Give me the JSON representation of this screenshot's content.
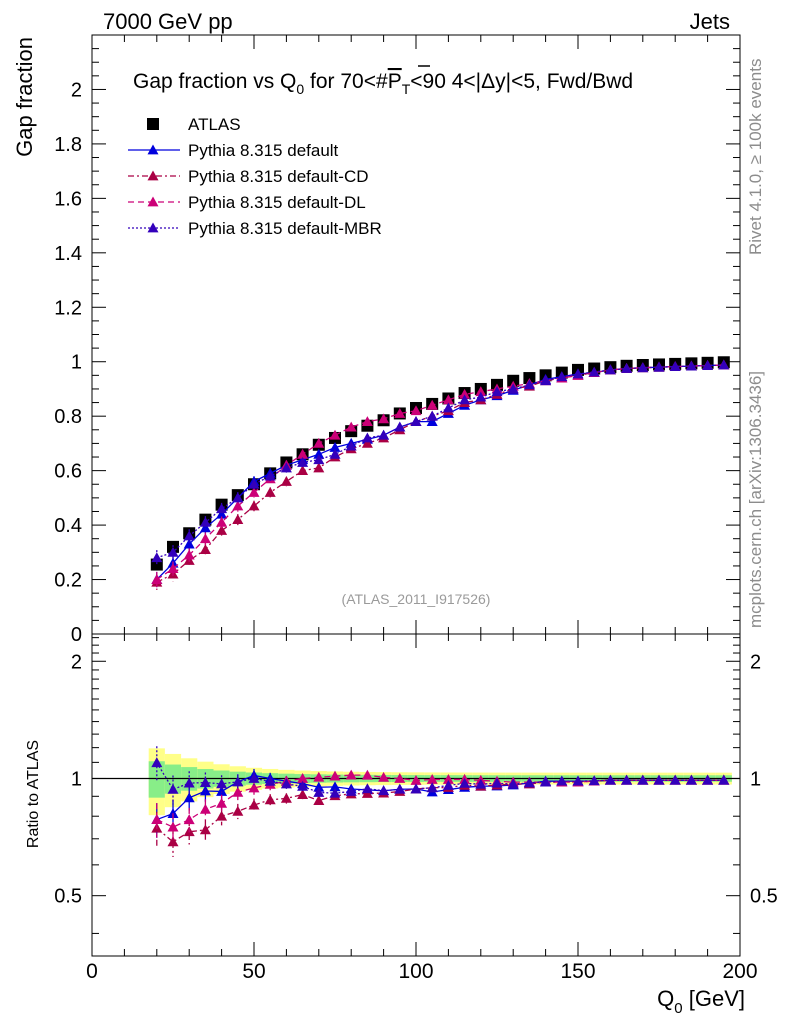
{
  "header": {
    "left": "7000 GeV pp",
    "right": "Jets"
  },
  "side_labels": {
    "rivet": "Rivet 4.1.0, ≥ 100k events",
    "mcplots": "mcplots.cern.ch [arXiv:1306.3436]"
  },
  "watermark": "(ATLAS_2011_I917526)",
  "chart_data": {
    "type": "scatter",
    "title_parts": {
      "pre": "Gap fraction vs Q",
      "q_sub": "0",
      "mid": " for 70<#",
      "pt": "P",
      "pt_sub": "T",
      "post": "<90  4<|Δy|<5, Fwd/Bwd"
    },
    "ylabel": "Gap fraction",
    "xlabel": {
      "base": "Q",
      "sub": "0",
      "unit": " [GeV]"
    },
    "ratio_ylabel": "Ratio to ATLAS",
    "xlim": [
      0,
      200
    ],
    "ylim": [
      0,
      2.2
    ],
    "ratio_ylim": [
      0.35,
      2.35
    ],
    "x_ticks": [
      "0",
      "50",
      "100",
      "150",
      "200"
    ],
    "y_ticks": [
      "0",
      "0.2",
      "0.4",
      "0.6",
      "0.8",
      "1",
      "1.2",
      "1.4",
      "1.6",
      "1.8",
      "2"
    ],
    "ratio_ticks": [
      "0.5",
      "1",
      "2"
    ],
    "x": [
      20,
      25,
      30,
      35,
      40,
      45,
      50,
      55,
      60,
      65,
      70,
      75,
      80,
      85,
      90,
      95,
      100,
      105,
      110,
      115,
      120,
      125,
      130,
      135,
      140,
      145,
      150,
      155,
      160,
      165,
      170,
      175,
      180,
      185,
      190,
      195
    ],
    "legend": [
      {
        "label": "ATLAS",
        "color": "#000000",
        "marker": "square",
        "line": "none"
      },
      {
        "label": "Pythia 8.315 default",
        "color": "#0000dd",
        "marker": "triangle",
        "line": "solid"
      },
      {
        "label": "Pythia 8.315 default-CD",
        "color": "#aa0044",
        "marker": "triangle",
        "line": "dashdot"
      },
      {
        "label": "Pythia 8.315 default-DL",
        "color": "#cc0077",
        "marker": "triangle",
        "line": "dashed"
      },
      {
        "label": "Pythia 8.315 default-MBR",
        "color": "#3300bb",
        "marker": "triangle",
        "line": "dotted"
      }
    ],
    "series": [
      {
        "name": "ATLAS",
        "values": [
          0.255,
          0.32,
          0.37,
          0.42,
          0.475,
          0.51,
          0.55,
          0.59,
          0.63,
          0.66,
          0.695,
          0.72,
          0.745,
          0.765,
          0.785,
          0.81,
          0.83,
          0.845,
          0.865,
          0.885,
          0.9,
          0.915,
          0.93,
          0.94,
          0.95,
          0.96,
          0.97,
          0.975,
          0.98,
          0.985,
          0.988,
          0.99,
          0.992,
          0.994,
          0.996,
          0.998
        ]
      },
      {
        "name": "Pythia 8.315 default",
        "values": [
          0.2,
          0.26,
          0.33,
          0.39,
          0.44,
          0.5,
          0.56,
          0.59,
          0.62,
          0.64,
          0.66,
          0.685,
          0.7,
          0.715,
          0.73,
          0.76,
          0.78,
          0.78,
          0.81,
          0.84,
          0.86,
          0.875,
          0.895,
          0.915,
          0.935,
          0.945,
          0.955,
          0.96,
          0.97,
          0.975,
          0.978,
          0.98,
          0.982,
          0.984,
          0.986,
          0.988
        ]
      },
      {
        "name": "Pythia 8.315 default-CD",
        "values": [
          0.19,
          0.22,
          0.27,
          0.31,
          0.38,
          0.42,
          0.47,
          0.52,
          0.56,
          0.6,
          0.61,
          0.65,
          0.68,
          0.7,
          0.72,
          0.75,
          0.78,
          0.8,
          0.82,
          0.85,
          0.86,
          0.88,
          0.9,
          0.91,
          0.93,
          0.94,
          0.95,
          0.96,
          0.97,
          0.975,
          0.978,
          0.98,
          0.982,
          0.984,
          0.986,
          0.988
        ]
      },
      {
        "name": "Pythia 8.315 default-DL",
        "values": [
          0.2,
          0.24,
          0.29,
          0.35,
          0.41,
          0.47,
          0.52,
          0.57,
          0.62,
          0.66,
          0.7,
          0.73,
          0.76,
          0.78,
          0.79,
          0.81,
          0.82,
          0.84,
          0.86,
          0.88,
          0.89,
          0.9,
          0.91,
          0.92,
          0.93,
          0.94,
          0.95,
          0.96,
          0.97,
          0.975,
          0.978,
          0.98,
          0.982,
          0.984,
          0.986,
          0.988
        ]
      },
      {
        "name": "Pythia 8.315 default-MBR",
        "values": [
          0.28,
          0.3,
          0.36,
          0.41,
          0.46,
          0.5,
          0.55,
          0.58,
          0.61,
          0.63,
          0.64,
          0.66,
          0.69,
          0.72,
          0.73,
          0.76,
          0.78,
          0.8,
          0.83,
          0.86,
          0.87,
          0.89,
          0.9,
          0.915,
          0.93,
          0.945,
          0.955,
          0.962,
          0.97,
          0.975,
          0.978,
          0.98,
          0.982,
          0.984,
          0.986,
          0.988
        ]
      }
    ]
  }
}
